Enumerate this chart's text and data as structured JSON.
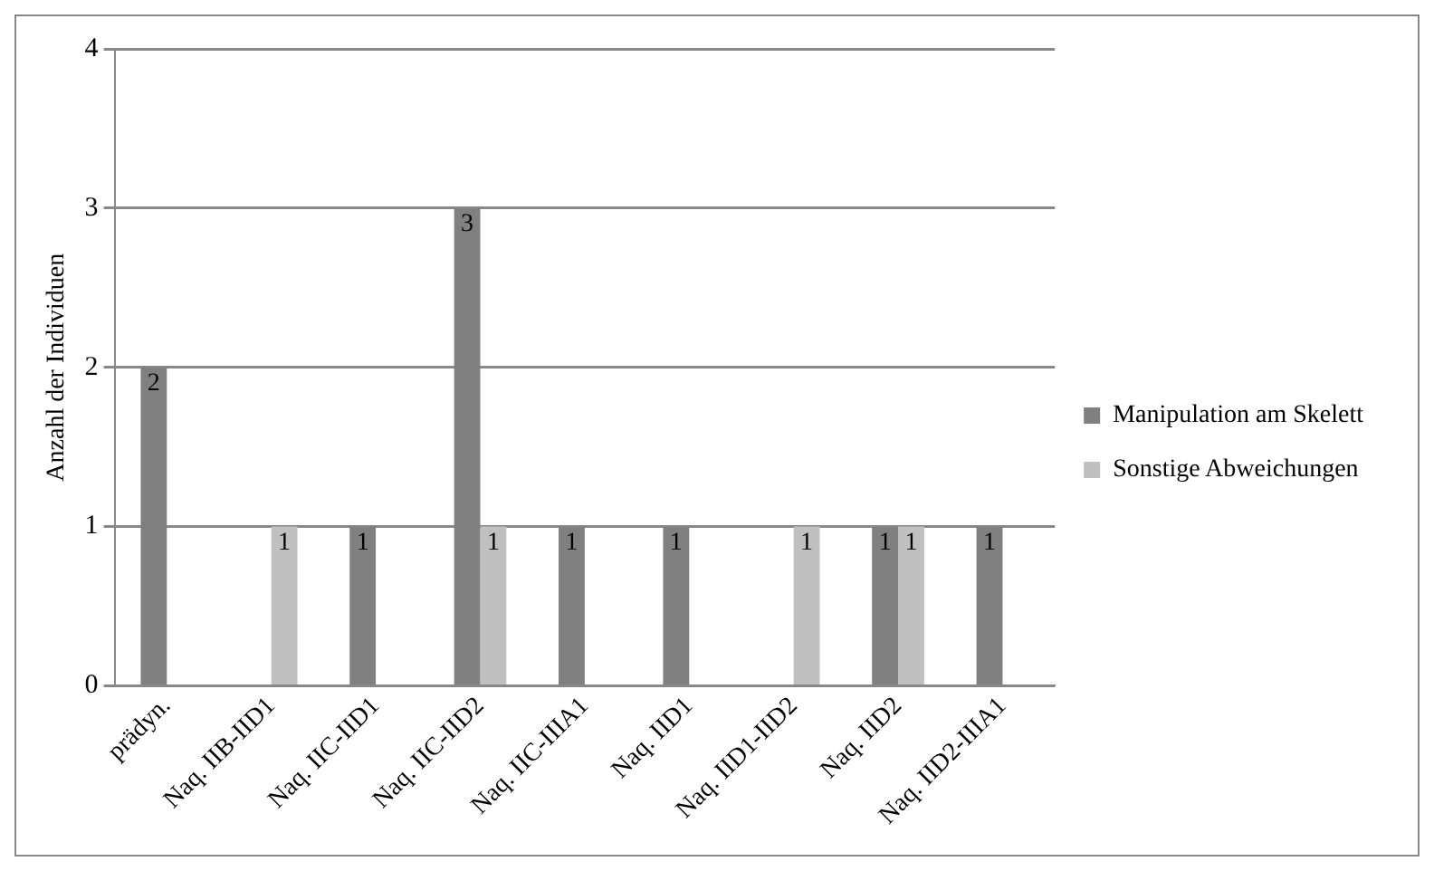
{
  "chart_data": {
    "type": "bar",
    "ylabel": "Anzahl der Individuen",
    "categories": [
      "prädyn.",
      "Naq. IIB-IID1",
      "Naq. IIC-IID1",
      "Naq. IIC-IID2",
      "Naq. IIC-IIIA1",
      "Naq. IID1",
      "Naq. IID1-IID2",
      "Naq. IID2",
      "Naq. IID2-IIIA1"
    ],
    "series": [
      {
        "name": "Manipulation am Skelett",
        "color": "#808080",
        "values": [
          2,
          null,
          1,
          3,
          1,
          1,
          null,
          1,
          1
        ]
      },
      {
        "name": "Sonstige Abweichungen",
        "color": "#c0c0c0",
        "values": [
          null,
          1,
          null,
          1,
          null,
          null,
          1,
          1,
          null
        ]
      }
    ],
    "ylim": [
      0,
      4
    ],
    "yticks": [
      0,
      1,
      2,
      3,
      4
    ],
    "grid": "y",
    "legend": "right",
    "data_labels": true
  }
}
